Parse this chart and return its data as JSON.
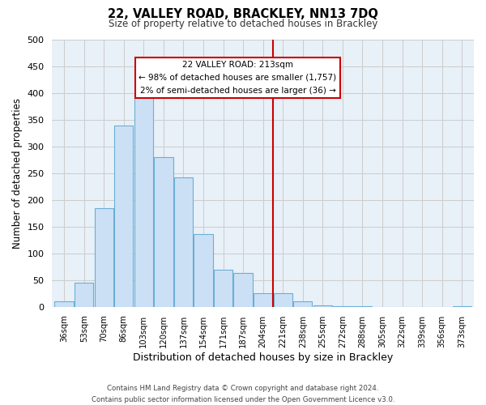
{
  "title": "22, VALLEY ROAD, BRACKLEY, NN13 7DQ",
  "subtitle": "Size of property relative to detached houses in Brackley",
  "xlabel": "Distribution of detached houses by size in Brackley",
  "ylabel": "Number of detached properties",
  "bar_labels": [
    "36sqm",
    "53sqm",
    "70sqm",
    "86sqm",
    "103sqm",
    "120sqm",
    "137sqm",
    "154sqm",
    "171sqm",
    "187sqm",
    "204sqm",
    "221sqm",
    "238sqm",
    "255sqm",
    "272sqm",
    "288sqm",
    "305sqm",
    "322sqm",
    "339sqm",
    "356sqm",
    "373sqm"
  ],
  "bar_values": [
    10,
    46,
    184,
    340,
    400,
    280,
    243,
    136,
    70,
    63,
    25,
    25,
    10,
    3,
    1,
    1,
    0,
    0,
    0,
    0,
    2
  ],
  "bar_color": "#cce0f5",
  "bar_edge_color": "#6baed6",
  "highlight_line_color": "#cc0000",
  "ylim": [
    0,
    500
  ],
  "yticks": [
    0,
    50,
    100,
    150,
    200,
    250,
    300,
    350,
    400,
    450,
    500
  ],
  "annotation_title": "22 VALLEY ROAD: 213sqm",
  "annotation_line1": "← 98% of detached houses are smaller (1,757)",
  "annotation_line2": "2% of semi-detached houses are larger (36) →",
  "annotation_box_color": "#ffffff",
  "annotation_box_edge": "#cc0000",
  "footer_line1": "Contains HM Land Registry data © Crown copyright and database right 2024.",
  "footer_line2": "Contains public sector information licensed under the Open Government Licence v3.0.",
  "grid_color": "#cccccc",
  "background_color": "#e8f0f8"
}
